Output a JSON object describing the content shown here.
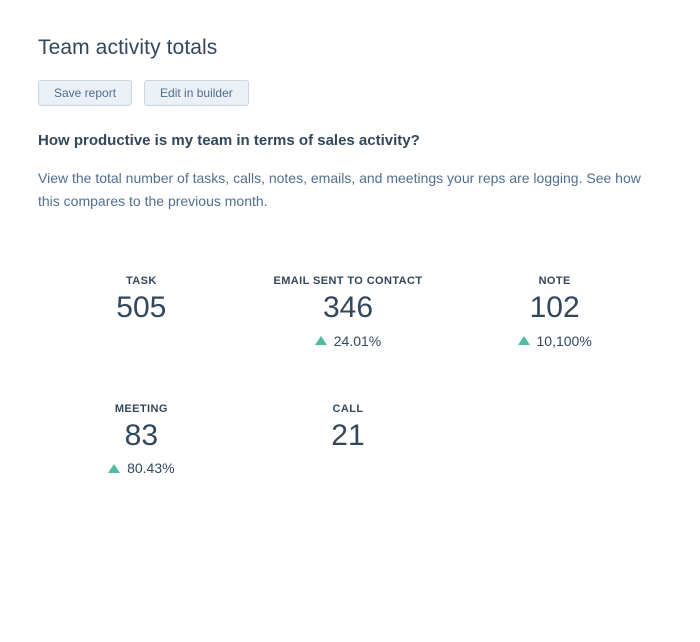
{
  "header": {
    "title": "Team activity totals",
    "save_button": "Save report",
    "edit_button": "Edit in builder"
  },
  "report": {
    "question": "How productive is my team in terms of sales activity?",
    "description": "View the total number of tasks, calls, notes, emails, and meetings your reps are logging. See how this compares to the previous month."
  },
  "metrics": [
    {
      "label": "TASK",
      "value": "505"
    },
    {
      "label": "EMAIL SENT TO CONTACT",
      "value": "346",
      "change": "24.01%",
      "direction": "up"
    },
    {
      "label": "NOTE",
      "value": "102",
      "change": "10,100%",
      "direction": "up"
    },
    {
      "label": "MEETING",
      "value": "83",
      "change": "80.43%",
      "direction": "up"
    },
    {
      "label": "CALL",
      "value": "21"
    }
  ],
  "colors": {
    "background": "#ffffff",
    "text_dark": "#33475b",
    "text_muted": "#516f90",
    "positive_change": "#52b9a2",
    "button_bg": "#eaf0f6",
    "button_border": "#cbd6e2",
    "button_text": "#506e91"
  }
}
